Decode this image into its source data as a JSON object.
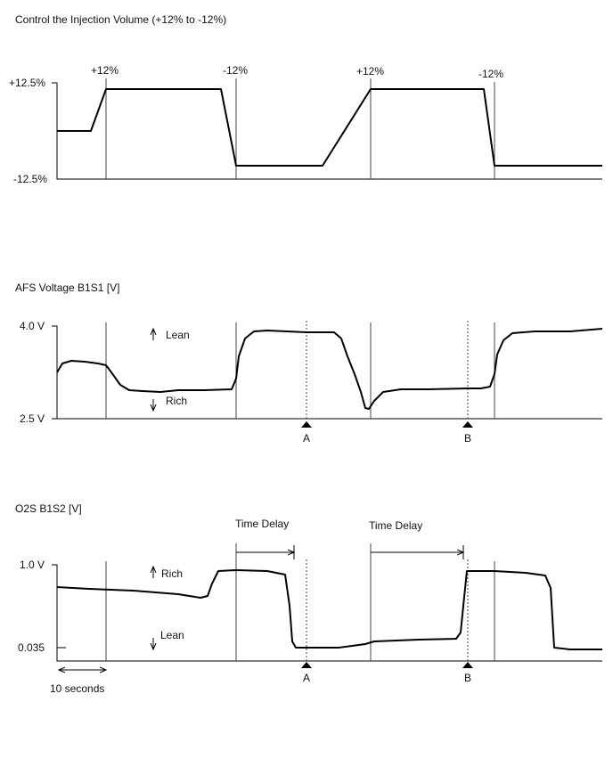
{
  "panels": [
    {
      "title": "Control the Injection Volume (+12% to -12%)",
      "y_top": "+12.5%",
      "y_bottom": "-12.5%",
      "markers": [
        "+12%",
        "-12%",
        "+12%",
        "-12%"
      ]
    },
    {
      "title": "AFS Voltage B1S1 [V]",
      "y_top": "4.0 V",
      "y_bottom": "2.5 V",
      "upper_note": "Lean",
      "lower_note": "Rich",
      "points": [
        "A",
        "B"
      ]
    },
    {
      "title": "O2S B1S2 [V]",
      "y_top": "1.0 V",
      "y_bottom": "0.035",
      "upper_note": "Rich",
      "lower_note": "Lean",
      "points": [
        "A",
        "B"
      ],
      "delays": [
        "Time Delay",
        "Time Delay"
      ]
    }
  ],
  "scale_note": "10 seconds"
}
